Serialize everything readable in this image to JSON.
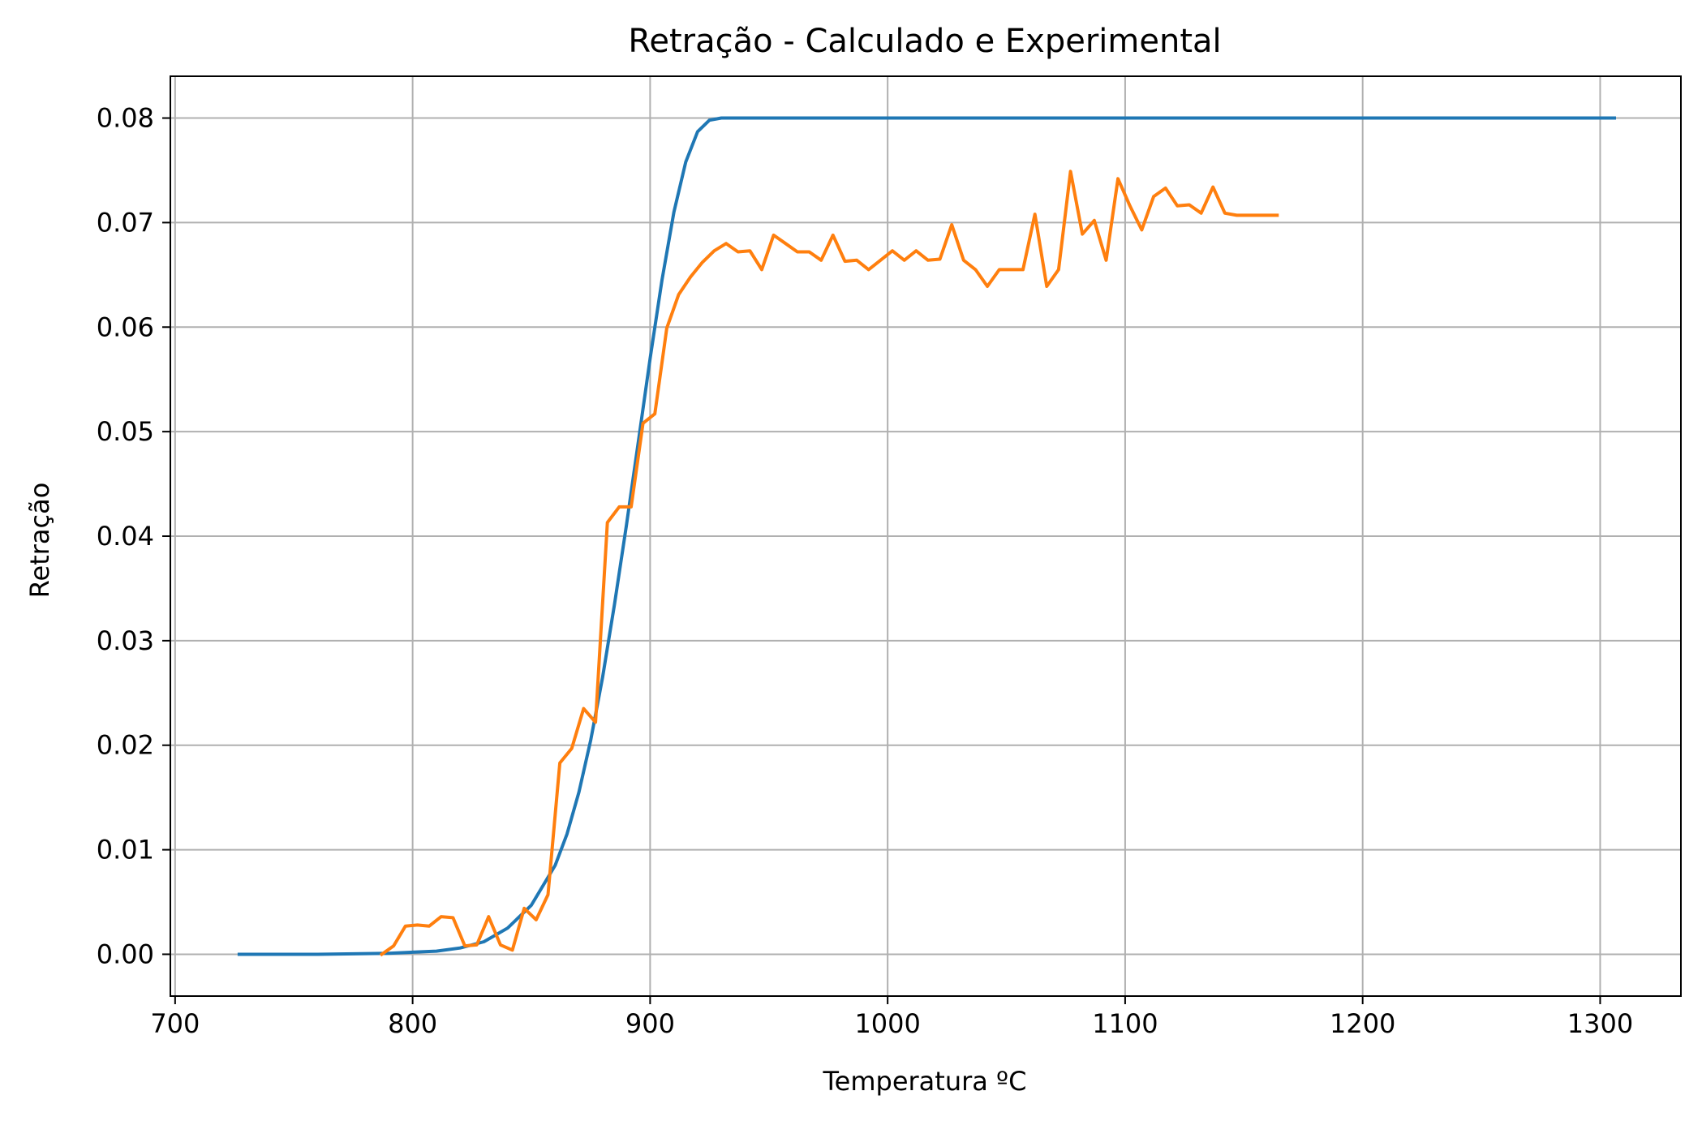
{
  "chart_data": {
    "type": "line",
    "title": "Retração - Calculado e Experimental",
    "xlabel": "Temperatura ºC",
    "ylabel": "Retração",
    "xlim": [
      698,
      1334
    ],
    "ylim": [
      -0.004,
      0.084
    ],
    "xticks": [
      700,
      800,
      900,
      1000,
      1100,
      1200,
      1300
    ],
    "xtick_labels": [
      "700",
      "800",
      "900",
      "1000",
      "1100",
      "1200",
      "1300"
    ],
    "yticks": [
      0.0,
      0.01,
      0.02,
      0.03,
      0.04,
      0.05,
      0.06,
      0.07,
      0.08
    ],
    "ytick_labels": [
      "0.00",
      "0.01",
      "0.02",
      "0.03",
      "0.04",
      "0.05",
      "0.06",
      "0.07",
      "0.08"
    ],
    "grid": true,
    "legend": "none",
    "series": [
      {
        "color": "#1f77b4",
        "x": [
          727,
          760,
          790,
          810,
          820,
          830,
          840,
          850,
          860,
          865,
          870,
          875,
          880,
          885,
          890,
          895,
          900,
          905,
          910,
          915,
          920,
          925,
          930,
          935,
          940,
          1000,
          1100,
          1200,
          1306
        ],
        "y": [
          0.0,
          0.0,
          0.0001,
          0.0003,
          0.0006,
          0.0012,
          0.0025,
          0.0047,
          0.0085,
          0.0115,
          0.0155,
          0.0205,
          0.0265,
          0.0335,
          0.041,
          0.049,
          0.057,
          0.0645,
          0.071,
          0.0758,
          0.0787,
          0.0798,
          0.08,
          0.08,
          0.08,
          0.08,
          0.08,
          0.08,
          0.08
        ]
      },
      {
        "color": "#ff7f0e",
        "x": [
          787,
          792,
          797,
          802,
          807,
          812,
          817,
          822,
          827,
          832,
          837,
          842,
          847,
          852,
          857,
          862,
          867,
          872,
          877,
          882,
          887,
          892,
          897,
          902,
          907,
          912,
          917,
          922,
          927,
          932,
          937,
          942,
          947,
          952,
          957,
          962,
          967,
          972,
          977,
          982,
          987,
          992,
          997,
          1002,
          1007,
          1012,
          1017,
          1022,
          1027,
          1032,
          1037,
          1042,
          1047,
          1052,
          1057,
          1062,
          1067,
          1072,
          1077,
          1082,
          1087,
          1092,
          1097,
          1102,
          1107,
          1112,
          1117,
          1122,
          1127,
          1132,
          1137,
          1142,
          1147,
          1152,
          1157,
          1164
        ],
        "y": [
          0.0,
          0.0008,
          0.0027,
          0.0028,
          0.0027,
          0.0036,
          0.0035,
          0.0008,
          0.0009,
          0.0036,
          0.0009,
          0.0004,
          0.0044,
          0.0033,
          0.0057,
          0.0183,
          0.0197,
          0.0235,
          0.0222,
          0.0413,
          0.0428,
          0.0428,
          0.0508,
          0.0517,
          0.0599,
          0.0631,
          0.0648,
          0.0662,
          0.0673,
          0.068,
          0.0672,
          0.0673,
          0.0655,
          0.0688,
          0.068,
          0.0672,
          0.0672,
          0.0664,
          0.0688,
          0.0663,
          0.0664,
          0.0655,
          0.0664,
          0.0673,
          0.0664,
          0.0673,
          0.0664,
          0.0665,
          0.0698,
          0.0664,
          0.0655,
          0.0639,
          0.0655,
          0.0655,
          0.0655,
          0.0708,
          0.0639,
          0.0655,
          0.0749,
          0.0689,
          0.0702,
          0.0664,
          0.0742,
          0.0716,
          0.0693,
          0.0725,
          0.0733,
          0.0716,
          0.0717,
          0.0709,
          0.0734,
          0.0709,
          0.0707,
          0.0707,
          0.0707,
          0.0707
        ]
      }
    ]
  }
}
